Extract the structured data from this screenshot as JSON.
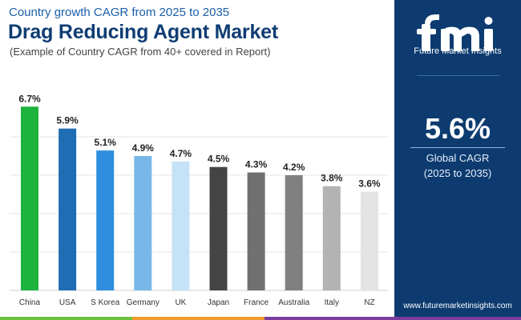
{
  "header": {
    "subtitle": "Country growth CAGR from 2025 to 2035",
    "title": "Drag Reducing Agent Market",
    "note": "(Example of Country CAGR from 40+ covered in Report)"
  },
  "chart_data": {
    "type": "bar",
    "title": "Drag Reducing Agent Market",
    "categories": [
      "China",
      "USA",
      "S Korea",
      "Germany",
      "UK",
      "Japan",
      "France",
      "Australia",
      "Italy",
      "NZ"
    ],
    "values": [
      6.7,
      5.9,
      5.1,
      4.9,
      4.7,
      4.5,
      4.3,
      4.2,
      3.8,
      3.6
    ],
    "value_labels": [
      "6.7%",
      "5.9%",
      "5.1%",
      "4.9%",
      "4.7%",
      "4.5%",
      "4.3%",
      "4.2%",
      "3.8%",
      "3.6%"
    ],
    "colors": [
      "#1db33d",
      "#1f6db3",
      "#2f8ede",
      "#78b8e8",
      "#c5e2f7",
      "#444444",
      "#707070",
      "#808080",
      "#b3b3b3",
      "#e3e3e3"
    ],
    "ylim": [
      0,
      7
    ],
    "grid": true,
    "xlabel": "",
    "ylabel": ""
  },
  "sidebar": {
    "logo_name": "Future Market Insights",
    "cagr_value": "5.6%",
    "cagr_label_line1": "Global CAGR",
    "cagr_label_line2": "(2025 to 2035)",
    "website": "www.futuremarketinsights.com"
  },
  "colors": {
    "panel": "#0d3b70",
    "stripe_left": "#6dbf3f",
    "stripe_mid": "#f29a2e",
    "stripe_right": "#7a3e9d"
  }
}
